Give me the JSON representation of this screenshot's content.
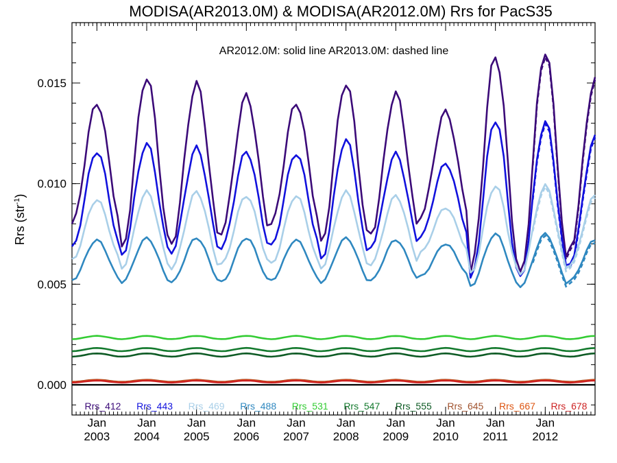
{
  "chart_data": {
    "type": "line",
    "title": "MODISA(AR2013.0M) & MODISA(AR2012.0M)  Rrs for PacS35",
    "annotation": "AR2012.0M: solid line   AR2013.0M: dashed line",
    "ylabel": "Rrs (str",
    "ylabel_sup": "-1",
    "ylabel_end": ")",
    "xlabel": "",
    "xlim": [
      2002.5,
      2013.0
    ],
    "ylim": [
      -0.0015,
      0.018
    ],
    "yticks": [
      0.0,
      0.005,
      0.01,
      0.015
    ],
    "ytick_labels": [
      "0.000",
      "0.005",
      "0.010",
      "0.015"
    ],
    "xticks": [
      {
        "month": "Jan",
        "year": "2003",
        "x": 2003
      },
      {
        "month": "Jan",
        "year": "2004",
        "x": 2004
      },
      {
        "month": "Jan",
        "year": "2005",
        "x": 2005
      },
      {
        "month": "Jan",
        "year": "2006",
        "x": 2006
      },
      {
        "month": "Jan",
        "year": "2007",
        "x": 2007
      },
      {
        "month": "Jan",
        "year": "2008",
        "x": 2008
      },
      {
        "month": "Jan",
        "year": "2009",
        "x": 2009
      },
      {
        "month": "Jan",
        "year": "2010",
        "x": 2010
      },
      {
        "month": "Jan",
        "year": "2011",
        "x": 2011
      },
      {
        "month": "Jan",
        "year": "2012",
        "x": 2012
      }
    ],
    "grid": false,
    "legend_position": "bottom inside",
    "series": [
      {
        "name": "Rrs_412",
        "color": "#3b0a78",
        "mean": 0.011,
        "amp": 0.003,
        "peaks": [
          0.014,
          0.0153,
          0.015,
          0.0144,
          0.014,
          0.015,
          0.0145,
          0.0136,
          0.0164,
          0.0166,
          0.0152
        ]
      },
      {
        "name": "Rrs_443",
        "color": "#1111dd",
        "mean": 0.0092,
        "amp": 0.0024,
        "peaks": [
          0.0116,
          0.012,
          0.0118,
          0.0116,
          0.0115,
          0.0122,
          0.0115,
          0.011,
          0.0132,
          0.0131,
          0.0123
        ]
      },
      {
        "name": "Rrs_469",
        "color": "#a9cfe8",
        "mean": 0.0077,
        "amp": 0.0016,
        "peaks": [
          0.0092,
          0.0096,
          0.0096,
          0.0094,
          0.0094,
          0.0096,
          0.0094,
          0.0088,
          0.0099,
          0.0099,
          0.0094
        ]
      },
      {
        "name": "Rrs_488",
        "color": "#2f88c0",
        "mean": 0.0062,
        "amp": 0.001,
        "peaks": [
          0.0072,
          0.0073,
          0.0073,
          0.0073,
          0.0072,
          0.0073,
          0.0072,
          0.007,
          0.0075,
          0.0075,
          0.0072
        ]
      },
      {
        "name": "Rrs_531",
        "color": "#33cc33",
        "mean": 0.00235,
        "amp": 8e-05,
        "peaks": []
      },
      {
        "name": "Rrs_547",
        "color": "#147a2e",
        "mean": 0.00175,
        "amp": 8e-05,
        "peaks": []
      },
      {
        "name": "Rrs_555",
        "color": "#0d5a24",
        "mean": 0.00148,
        "amp": 8e-05,
        "peaks": []
      },
      {
        "name": "Rrs_645",
        "color": "#a0522d",
        "mean": 0.0002,
        "amp": 5e-05,
        "peaks": []
      },
      {
        "name": "Rrs_667",
        "color": "#dd5511",
        "mean": 0.00018,
        "amp": 5e-05,
        "peaks": []
      },
      {
        "name": "Rrs_678",
        "color": "#cc2222",
        "mean": 0.00016,
        "amp": 5e-05,
        "peaks": []
      }
    ]
  }
}
